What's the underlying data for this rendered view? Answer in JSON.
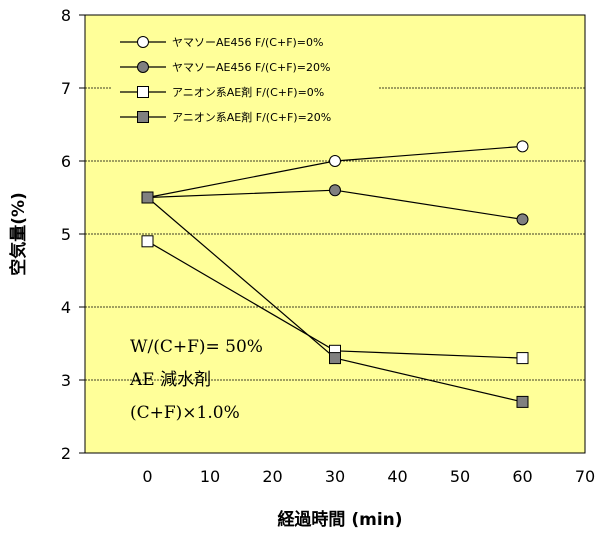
{
  "chart_data": {
    "type": "line",
    "title": "",
    "xlabel": "経過時間 (min)",
    "ylabel": "空気量(%)",
    "xlim": [
      -10,
      70
    ],
    "ylim": [
      2,
      8
    ],
    "xticks": [
      0,
      10,
      20,
      30,
      40,
      50,
      60,
      70
    ],
    "yticks": [
      2,
      3,
      4,
      5,
      6,
      7,
      8
    ],
    "plot_background": "#ffff99",
    "legend_position": "top-left",
    "series": [
      {
        "name": "ヤマソーAE456 F/(C+F)=0%",
        "marker": "circle",
        "fill": "#ffffff",
        "x": [
          0,
          30,
          60
        ],
        "y": [
          5.5,
          6.0,
          6.2
        ]
      },
      {
        "name": "ヤマソーAE456 F/(C+F)=20%",
        "marker": "circle",
        "fill": "#808080",
        "x": [
          0,
          30,
          60
        ],
        "y": [
          5.5,
          5.6,
          5.2
        ]
      },
      {
        "name": "アニオン系AE剤 F/(C+F)=0%",
        "marker": "square",
        "fill": "#ffffff",
        "x": [
          0,
          30,
          60
        ],
        "y": [
          4.9,
          3.4,
          3.3
        ]
      },
      {
        "name": "アニオン系AE剤 F/(C+F)=20%",
        "marker": "square",
        "fill": "#808080",
        "x": [
          0,
          30,
          60
        ],
        "y": [
          5.5,
          3.3,
          2.7
        ]
      }
    ],
    "annotations": [
      "W/(C+F)= 50%",
      "AE 減水剤",
      "(C+F)×1.0%"
    ]
  }
}
